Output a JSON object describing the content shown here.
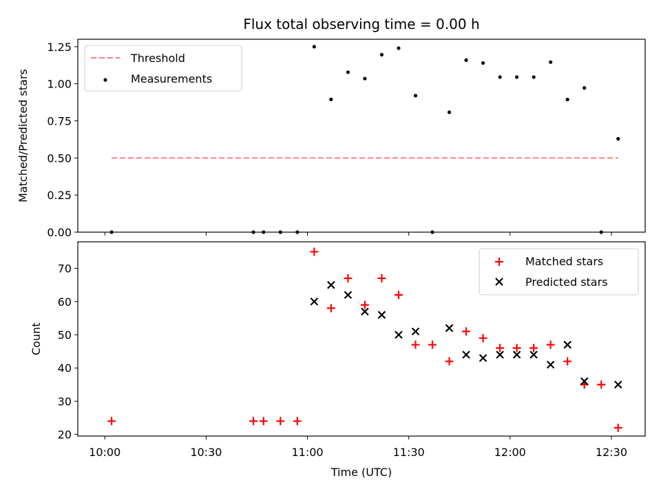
{
  "chart_data": [
    {
      "type": "scatter",
      "title": "Flux total observing time = 0.00 h",
      "ylabel": "Matched/Predicted stars",
      "xlim": [
        "09:52",
        "12:40"
      ],
      "ylim": [
        0,
        1.3
      ],
      "yticks": [
        "0.00",
        "0.25",
        "0.50",
        "0.75",
        "1.00",
        "1.25"
      ],
      "legend_position": "upper-left",
      "series": [
        {
          "name": "Threshold",
          "style": "dashed-line",
          "color": "#ff7f7f",
          "points": [
            [
              "10:02",
              0.5
            ],
            [
              "12:32",
              0.5
            ]
          ]
        },
        {
          "name": "Measurements",
          "style": "dot",
          "color": "#000000",
          "points": [
            [
              "10:02",
              0.0
            ],
            [
              "10:44",
              0.0
            ],
            [
              "10:47",
              0.0
            ],
            [
              "10:52",
              0.0
            ],
            [
              "10:57",
              0.0
            ],
            [
              "11:02",
              1.25
            ],
            [
              "11:07",
              0.895
            ],
            [
              "11:12",
              1.078
            ],
            [
              "11:17",
              1.035
            ],
            [
              "11:22",
              1.196
            ],
            [
              "11:27",
              1.24
            ],
            [
              "11:32",
              0.92
            ],
            [
              "11:37",
              0.0
            ],
            [
              "11:42",
              0.808
            ],
            [
              "11:47",
              1.159
            ],
            [
              "11:52",
              1.14
            ],
            [
              "11:57",
              1.045
            ],
            [
              "12:02",
              1.045
            ],
            [
              "12:07",
              1.045
            ],
            [
              "12:12",
              1.146
            ],
            [
              "12:17",
              0.894
            ],
            [
              "12:22",
              0.972
            ],
            [
              "12:27",
              0.0
            ],
            [
              "12:32",
              0.629
            ]
          ]
        }
      ]
    },
    {
      "type": "scatter",
      "xlabel": "Time (UTC)",
      "ylabel": "Count",
      "xlim": [
        "09:52",
        "12:40"
      ],
      "ylim": [
        19.5,
        78
      ],
      "yticks": [
        "20",
        "30",
        "40",
        "50",
        "60",
        "70"
      ],
      "xticks": [
        "10:00",
        "10:30",
        "11:00",
        "11:30",
        "12:00",
        "12:30"
      ],
      "legend_position": "upper-right",
      "series": [
        {
          "name": "Matched stars",
          "marker": "plus",
          "color": "#ff0000",
          "points": [
            [
              "10:02",
              24
            ],
            [
              "10:44",
              24
            ],
            [
              "10:47",
              24
            ],
            [
              "10:52",
              24
            ],
            [
              "10:57",
              24
            ],
            [
              "11:02",
              75
            ],
            [
              "11:07",
              58
            ],
            [
              "11:12",
              67
            ],
            [
              "11:17",
              59
            ],
            [
              "11:22",
              67
            ],
            [
              "11:27",
              62
            ],
            [
              "11:32",
              47
            ],
            [
              "11:37",
              47
            ],
            [
              "11:42",
              42
            ],
            [
              "11:47",
              51
            ],
            [
              "11:52",
              49
            ],
            [
              "11:57",
              46
            ],
            [
              "12:02",
              46
            ],
            [
              "12:07",
              46
            ],
            [
              "12:12",
              47
            ],
            [
              "12:17",
              42
            ],
            [
              "12:22",
              35
            ],
            [
              "12:27",
              35
            ],
            [
              "12:32",
              22
            ]
          ]
        },
        {
          "name": "Predicted stars",
          "marker": "x",
          "color": "#000000",
          "points": [
            [
              "11:02",
              60
            ],
            [
              "11:07",
              65
            ],
            [
              "11:12",
              62
            ],
            [
              "11:17",
              57
            ],
            [
              "11:22",
              56
            ],
            [
              "11:27",
              50
            ],
            [
              "11:32",
              51
            ],
            [
              "11:42",
              52
            ],
            [
              "11:47",
              44
            ],
            [
              "11:52",
              43
            ],
            [
              "11:57",
              44
            ],
            [
              "12:02",
              44
            ],
            [
              "12:07",
              44
            ],
            [
              "12:12",
              41
            ],
            [
              "12:17",
              47
            ],
            [
              "12:22",
              36
            ],
            [
              "12:32",
              35
            ]
          ]
        }
      ]
    }
  ]
}
